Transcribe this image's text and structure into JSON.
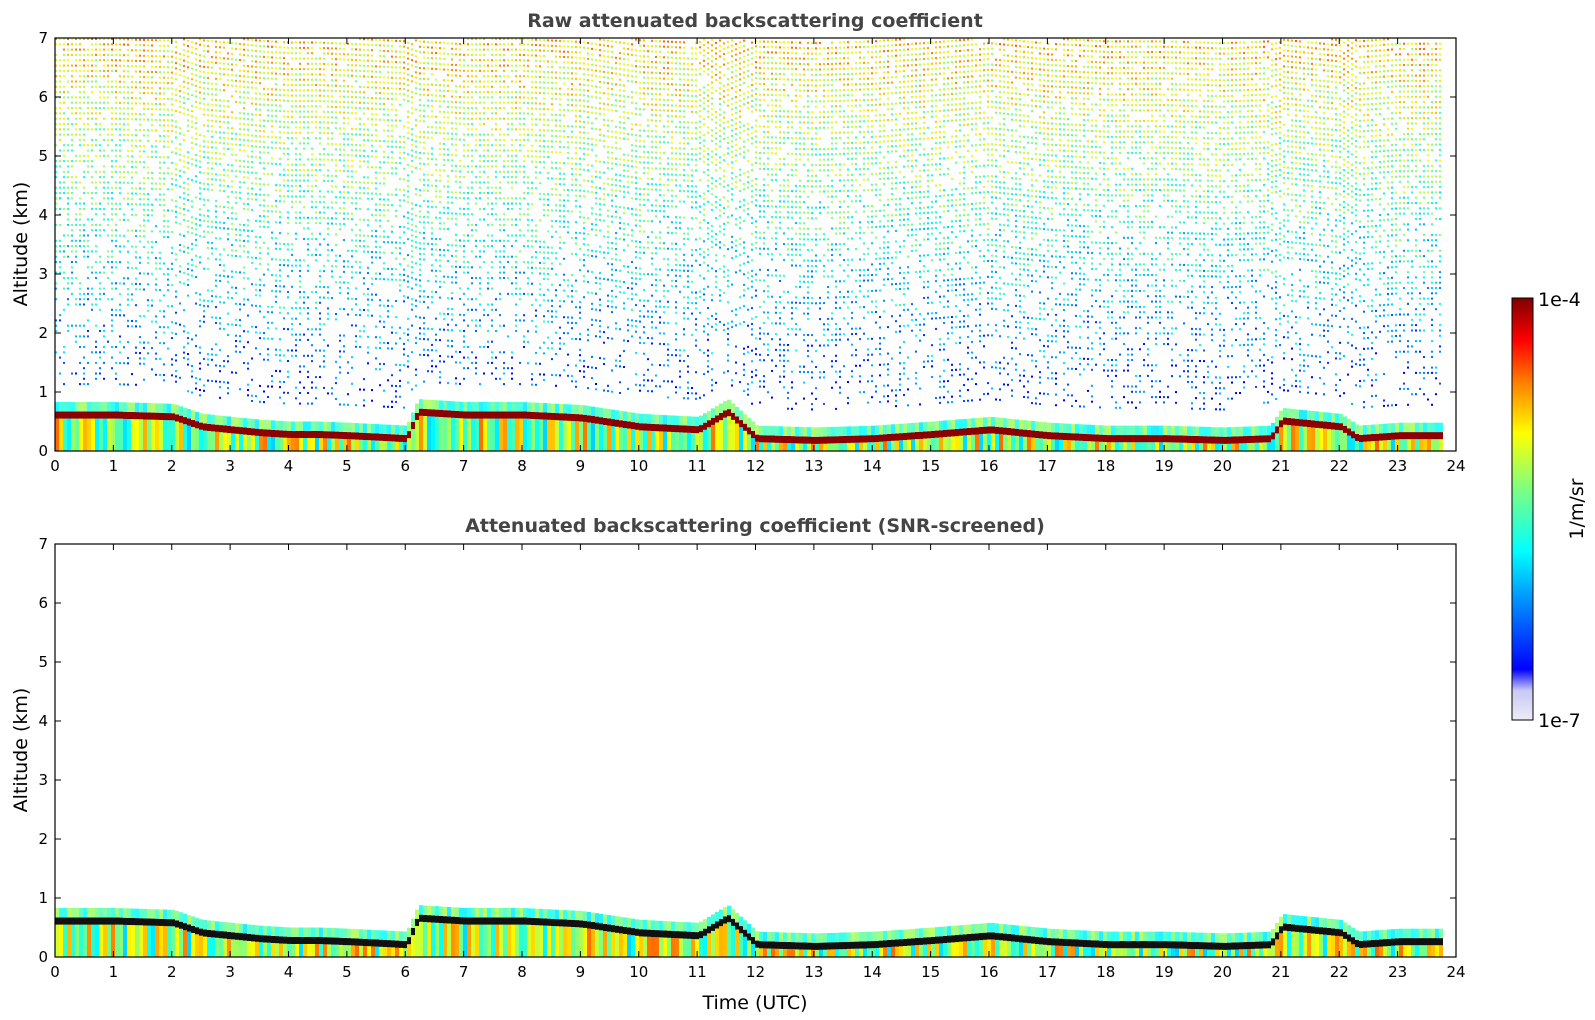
{
  "figure": {
    "xlabel": "Time (UTC)",
    "colorbar": {
      "label": "1/m/sr",
      "max_label": "1e-4",
      "min_label": "1e-7",
      "scale": "log",
      "colormap": "jet with white-to-lavender lower end",
      "colors": [
        "#ececf8",
        "#c8c8f4",
        "#0000ff",
        "#00ffff",
        "#7fff7f",
        "#ffff00",
        "#ff7f00",
        "#ff0000",
        "#7f0000"
      ]
    }
  },
  "chart_data": [
    {
      "type": "heatmap",
      "title": "Raw attenuated backscattering coefficient",
      "xlabel": "",
      "ylabel": "Altitude (km)",
      "xlim": [
        0,
        24
      ],
      "ylim": [
        0,
        7
      ],
      "x_ticks": [
        "0",
        "1",
        "2",
        "3",
        "4",
        "5",
        "6",
        "7",
        "8",
        "9",
        "10",
        "11",
        "12",
        "13",
        "14",
        "15",
        "16",
        "17",
        "18",
        "19",
        "20",
        "21",
        "22",
        "23",
        "24"
      ],
      "y_ticks": [
        "0",
        "1",
        "2",
        "3",
        "4",
        "5",
        "6",
        "7"
      ],
      "data_end_hour": 23.8,
      "boundary_layer_top_km": [
        [
          0,
          0.55
        ],
        [
          1,
          0.55
        ],
        [
          2,
          0.52
        ],
        [
          2.5,
          0.35
        ],
        [
          3,
          0.3
        ],
        [
          3.5,
          0.25
        ],
        [
          4,
          0.22
        ],
        [
          4.5,
          0.22
        ],
        [
          5,
          0.2
        ],
        [
          6,
          0.15
        ],
        [
          6.2,
          0.6
        ],
        [
          7,
          0.55
        ],
        [
          8,
          0.55
        ],
        [
          9,
          0.5
        ],
        [
          10,
          0.35
        ],
        [
          11,
          0.3
        ],
        [
          11.5,
          0.6
        ],
        [
          12,
          0.15
        ],
        [
          13,
          0.12
        ],
        [
          14,
          0.15
        ],
        [
          15,
          0.22
        ],
        [
          16,
          0.3
        ],
        [
          17,
          0.2
        ],
        [
          18,
          0.15
        ],
        [
          19,
          0.15
        ],
        [
          20,
          0.12
        ],
        [
          20.8,
          0.15
        ],
        [
          21,
          0.45
        ],
        [
          22,
          0.35
        ],
        [
          22.3,
          0.15
        ],
        [
          23,
          0.2
        ],
        [
          23.8,
          0.2
        ]
      ]
    },
    {
      "type": "heatmap",
      "title": "Attenuated backscattering coefficient (SNR-screened)",
      "xlabel": "Time (UTC)",
      "ylabel": "Altitude (km)",
      "xlim": [
        0,
        24
      ],
      "ylim": [
        0,
        7
      ],
      "x_ticks": [
        "0",
        "1",
        "2",
        "3",
        "4",
        "5",
        "6",
        "7",
        "8",
        "9",
        "10",
        "11",
        "12",
        "13",
        "14",
        "15",
        "16",
        "17",
        "18",
        "19",
        "20",
        "21",
        "22",
        "23",
        "24"
      ],
      "y_ticks": [
        "0",
        "1",
        "2",
        "3",
        "4",
        "5",
        "6",
        "7"
      ],
      "data_end_hour": 23.8,
      "boundary_layer_top_km": [
        [
          0,
          0.55
        ],
        [
          1,
          0.55
        ],
        [
          2,
          0.52
        ],
        [
          2.5,
          0.35
        ],
        [
          3,
          0.3
        ],
        [
          3.5,
          0.25
        ],
        [
          4,
          0.22
        ],
        [
          4.5,
          0.22
        ],
        [
          5,
          0.2
        ],
        [
          6,
          0.15
        ],
        [
          6.2,
          0.6
        ],
        [
          7,
          0.55
        ],
        [
          8,
          0.55
        ],
        [
          9,
          0.5
        ],
        [
          10,
          0.35
        ],
        [
          11,
          0.3
        ],
        [
          11.5,
          0.6
        ],
        [
          12,
          0.15
        ],
        [
          13,
          0.12
        ],
        [
          14,
          0.15
        ],
        [
          15,
          0.22
        ],
        [
          16,
          0.3
        ],
        [
          17,
          0.2
        ],
        [
          18,
          0.15
        ],
        [
          19,
          0.15
        ],
        [
          20,
          0.12
        ],
        [
          20.8,
          0.15
        ],
        [
          21,
          0.45
        ],
        [
          22,
          0.35
        ],
        [
          22.3,
          0.15
        ],
        [
          23,
          0.2
        ],
        [
          23.8,
          0.2
        ]
      ]
    }
  ]
}
